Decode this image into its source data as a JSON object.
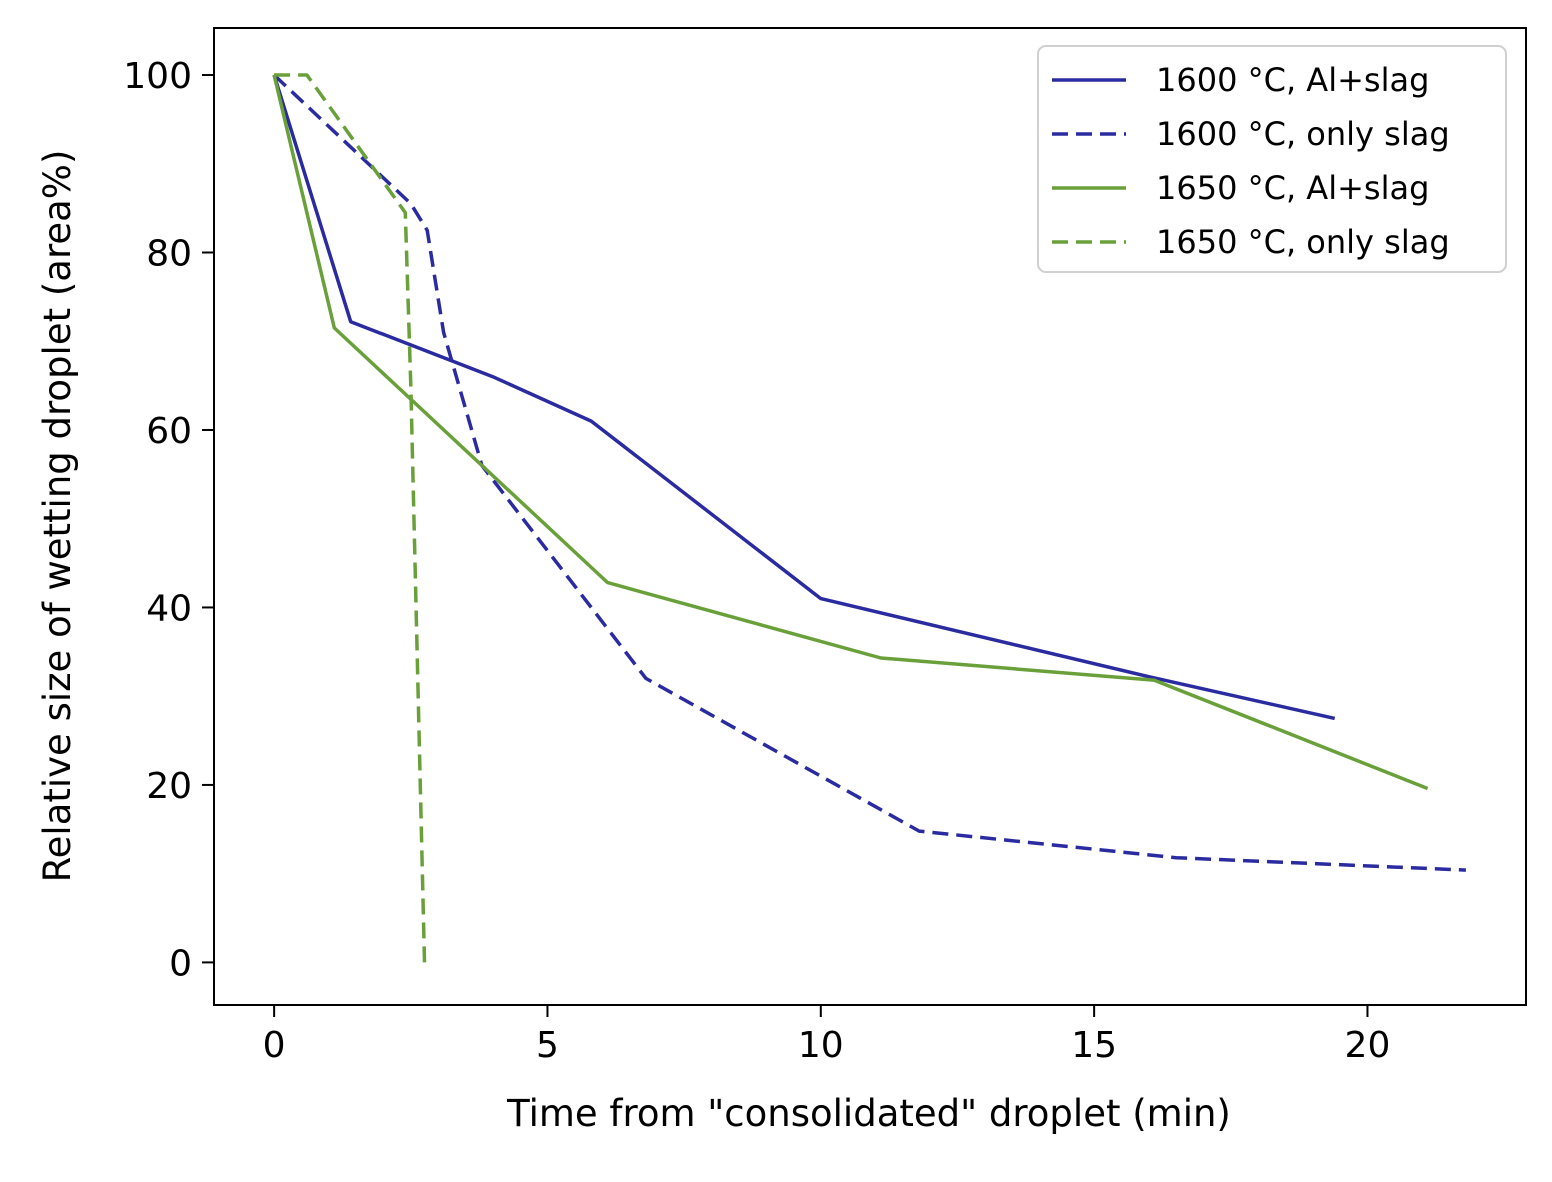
{
  "chart_data": {
    "type": "line",
    "title": "",
    "xlabel": "Time from \"consolidated\" droplet (min)",
    "ylabel": "Relative size of wetting droplet (area%)",
    "xlim": [
      -1.1,
      22.9
    ],
    "ylim": [
      -4.8,
      105.3
    ],
    "x_ticks": [
      0,
      5,
      10,
      15,
      20
    ],
    "x_tick_labels": [
      "0",
      "5",
      "10",
      "15",
      "20"
    ],
    "y_ticks": [
      0,
      20,
      40,
      60,
      80,
      100
    ],
    "y_tick_labels": [
      "0",
      "20",
      "40",
      "60",
      "80",
      "100"
    ],
    "grid": false,
    "legend_position": "top-right",
    "series": [
      {
        "name": "1600 °C, Al+slag",
        "color": "#2b2ba1",
        "style": "solid",
        "x": [
          0,
          1.4,
          4.0,
          5.8,
          10.0,
          16.0,
          19.4
        ],
        "y": [
          100,
          72.2,
          66.0,
          61.0,
          41.0,
          32.2,
          27.5
        ]
      },
      {
        "name": "1600 °C, only slag",
        "color": "#2b2ba1",
        "style": "dashed",
        "x": [
          0,
          2.5,
          2.8,
          3.1,
          3.8,
          6.8,
          11.8,
          16.5,
          21.8
        ],
        "y": [
          100,
          85.5,
          82.5,
          71.0,
          56.0,
          32.0,
          14.8,
          11.8,
          10.4
        ]
      },
      {
        "name": "1650 °C, Al+slag",
        "color": "#6aa03a",
        "style": "solid",
        "x": [
          0,
          1.1,
          6.1,
          11.1,
          16.1,
          21.1
        ],
        "y": [
          100,
          71.5,
          42.8,
          34.3,
          31.8,
          19.6
        ]
      },
      {
        "name": "1650 °C, only slag",
        "color": "#6aa03a",
        "style": "dashed",
        "x": [
          0,
          0.6,
          2.4,
          2.5,
          2.75
        ],
        "y": [
          100,
          100,
          84.5,
          65.0,
          0
        ]
      }
    ]
  }
}
